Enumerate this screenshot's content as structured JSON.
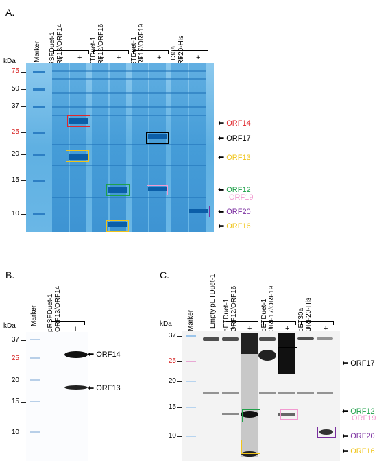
{
  "panels": {
    "a": {
      "letter": "A.",
      "kda": "kDa",
      "markers": [
        "75",
        "50",
        "37",
        "25",
        "20",
        "15",
        "10"
      ],
      "lanes": [
        "Marker",
        "pRSFDuet-1\nORF13/ORF14",
        "pETDuet-1\nORF12/ORF16",
        "pETDuet-1\nORF17/ORF19",
        "pET30a\nORF20-His"
      ],
      "signs": [
        "−",
        "+",
        "−",
        "+",
        "−",
        "+",
        "−",
        "+"
      ],
      "annotations": [
        {
          "text": "ORF14",
          "color": "#e0262b"
        },
        {
          "text": "ORF17",
          "color": "#000000"
        },
        {
          "text": "ORF13",
          "color": "#f0c419"
        },
        {
          "text": "ORF12",
          "color": "#1fa04a"
        },
        {
          "text": "ORF19",
          "color": "#f29ad0"
        },
        {
          "text": "ORF20",
          "color": "#7b2fa0"
        },
        {
          "text": "ORF16",
          "color": "#f0c419"
        }
      ]
    },
    "b": {
      "letter": "B.",
      "kda": "kDa",
      "markers": [
        "37",
        "25",
        "20",
        "15",
        "10"
      ],
      "lanes": [
        "Marker",
        "pRSFDuet-1\nORF13/ORF14"
      ],
      "signs": [
        "−",
        "+"
      ],
      "annotations": [
        {
          "text": "ORF14",
          "color": "#000000"
        },
        {
          "text": "ORF13",
          "color": "#000000"
        }
      ]
    },
    "c": {
      "letter": "C.",
      "kda": "kDa",
      "markers": [
        "37",
        "25",
        "20",
        "15",
        "10"
      ],
      "lanes": [
        "Marker",
        "Empty pETDuet-1",
        "pETDuet-1\nORF12/ORF16",
        "pETDuet-1\nORF17/ORF19",
        "pET30a\nORF20-His"
      ],
      "signs": [
        "−",
        "+",
        "−",
        "+",
        "−",
        "+"
      ],
      "annotations": [
        {
          "text": "ORF17",
          "color": "#000000"
        },
        {
          "text": "ORF12",
          "color": "#1fa04a"
        },
        {
          "text": "ORF19",
          "color": "#f29ad0"
        },
        {
          "text": "ORF20",
          "color": "#7b2fa0"
        },
        {
          "text": "ORF16",
          "color": "#f0c419"
        }
      ]
    }
  }
}
